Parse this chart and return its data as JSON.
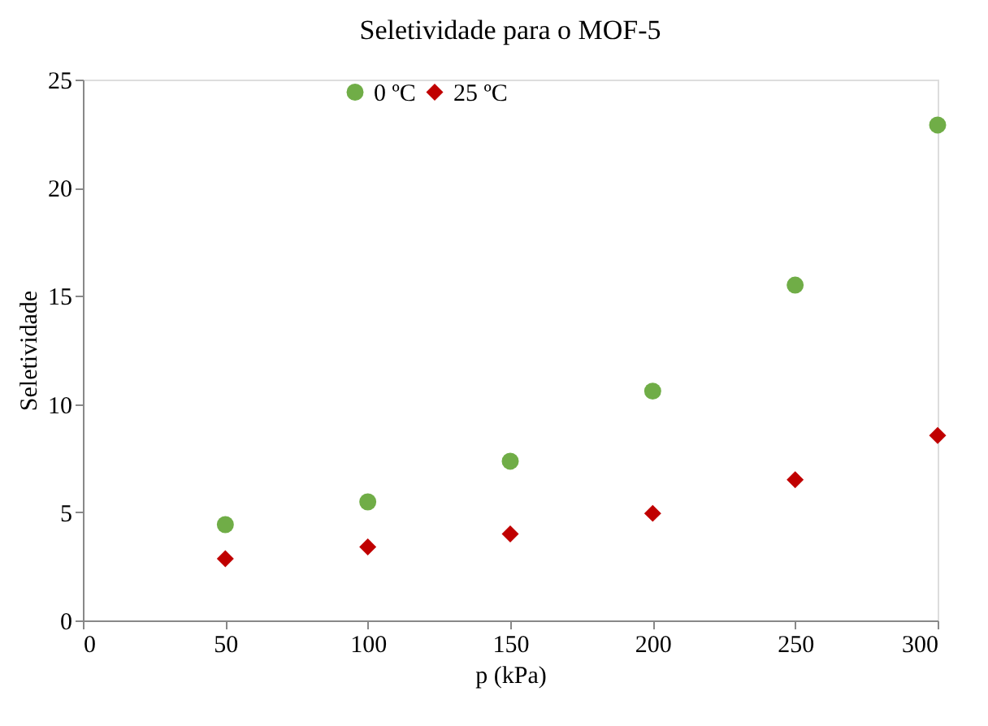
{
  "chart_data": {
    "type": "scatter",
    "title": "Seletividade para o MOF-5",
    "xlabel": "p (kPa)",
    "ylabel": "Seletividade",
    "x": [
      50,
      100,
      150,
      200,
      250,
      300
    ],
    "series": [
      {
        "name": "0 ºC",
        "color": "#70ad47",
        "marker": "circle",
        "values": [
          4.43,
          5.48,
          7.36,
          10.6,
          15.5,
          22.9
        ]
      },
      {
        "name": "25 ºC",
        "color": "#c00000",
        "marker": "diamond",
        "values": [
          2.85,
          3.4,
          4.0,
          4.95,
          6.5,
          8.55
        ]
      }
    ],
    "xlim": [
      0,
      300
    ],
    "xticks": [
      0,
      50,
      100,
      150,
      200,
      250,
      300
    ],
    "ylim": [
      0,
      25
    ],
    "yticks": [
      0,
      5,
      10,
      15,
      20,
      25
    ],
    "grid": false,
    "legend": "top"
  }
}
